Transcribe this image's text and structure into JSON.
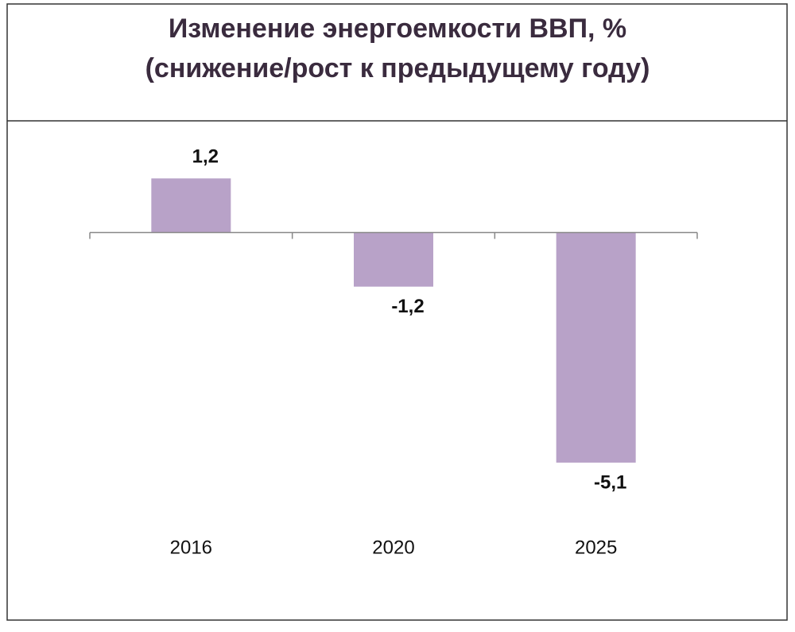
{
  "chart_data": {
    "type": "bar",
    "title": "Изменение энергоемкости ВВП, %",
    "subtitle": "(снижение/рост к предыдущему году)",
    "categories": [
      "2016",
      "2020",
      "2025"
    ],
    "values": [
      1.2,
      -1.2,
      -5.1
    ],
    "value_labels": [
      "1,2",
      "-1,2",
      "-5,1"
    ],
    "color": "#b8a2c8",
    "ylim": [
      -6,
      2
    ]
  }
}
